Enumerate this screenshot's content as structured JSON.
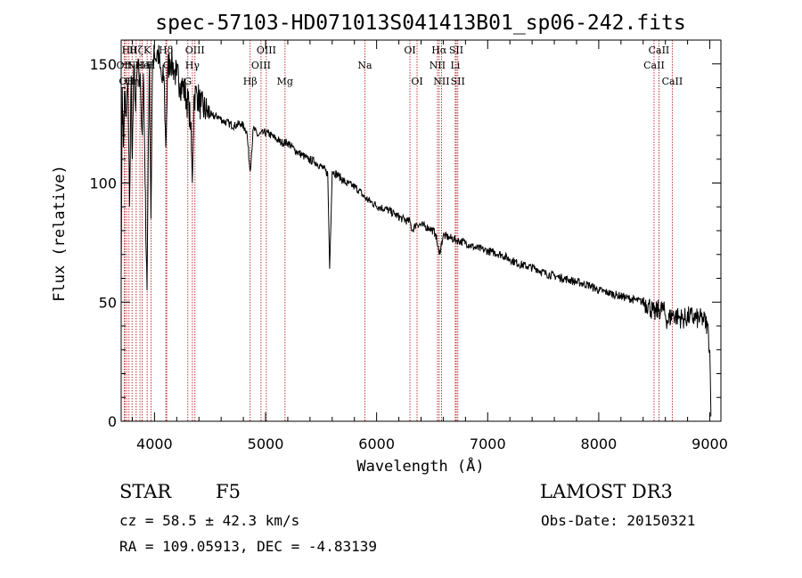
{
  "chart_data": {
    "type": "line",
    "title": "spec-57103-HD071013S041413B01_sp06-242.fits",
    "xlabel": "Wavelength (Å)",
    "ylabel": "Flux (relative)",
    "xlim": [
      3700,
      9100
    ],
    "ylim": [
      0,
      160
    ],
    "xticks": [
      4000,
      5000,
      6000,
      7000,
      8000,
      9000
    ],
    "yticks": [
      0,
      50,
      100,
      150
    ],
    "grid": false,
    "series": [
      {
        "name": "flux",
        "x": [
          3700,
          3710,
          3720,
          3730,
          3745,
          3760,
          3775,
          3790,
          3800,
          3815,
          3830,
          3845,
          3860,
          3875,
          3890,
          3900,
          3915,
          3933,
          3945,
          3955,
          3968,
          3980,
          3995,
          4010,
          4030,
          4050,
          4070,
          4085,
          4101,
          4120,
          4140,
          4160,
          4180,
          4200,
          4230,
          4260,
          4290,
          4310,
          4325,
          4340,
          4355,
          4380,
          4420,
          4470,
          4520,
          4570,
          4620,
          4670,
          4720,
          4780,
          4830,
          4861,
          4890,
          4930,
          4980,
          5020,
          5080,
          5140,
          5200,
          5260,
          5320,
          5380,
          5440,
          5500,
          5560,
          5577,
          5600,
          5660,
          5720,
          5780,
          5840,
          5890,
          5950,
          6020,
          6090,
          6160,
          6230,
          6280,
          6300,
          6320,
          6360,
          6420,
          6480,
          6530,
          6563,
          6600,
          6660,
          6720,
          6800,
          6880,
          6960,
          7040,
          7120,
          7200,
          7280,
          7360,
          7440,
          7520,
          7600,
          7680,
          7760,
          7840,
          7920,
          8000,
          8080,
          8160,
          8240,
          8320,
          8400,
          8450,
          8498,
          8542,
          8580,
          8620,
          8662,
          8700,
          8760,
          8820,
          8880,
          8940,
          8980,
          9000,
          9010
        ],
        "y": [
          60,
          140,
          115,
          138,
          128,
          142,
          90,
          145,
          110,
          150,
          130,
          148,
          145,
          140,
          120,
          146,
          100,
          55,
          118,
          150,
          85,
          142,
          158,
          152,
          155,
          148,
          142,
          145,
          115,
          148,
          152,
          150,
          147,
          145,
          142,
          140,
          135,
          132,
          125,
          100,
          136,
          138,
          132,
          130,
          128,
          128,
          126,
          125,
          124,
          125,
          122,
          105,
          123,
          120,
          121,
          121,
          119,
          117,
          117,
          114,
          112,
          110,
          109,
          107,
          104,
          64,
          105,
          103,
          100,
          99,
          97,
          94,
          92,
          90,
          89,
          87,
          85,
          84,
          84,
          80,
          83,
          82,
          81,
          79,
          70,
          78,
          77,
          76,
          75,
          73,
          72,
          71,
          70,
          68,
          66,
          65,
          64,
          62,
          61,
          60,
          59,
          58,
          57,
          55,
          54,
          53,
          52,
          51,
          50,
          49,
          45,
          47,
          47,
          42,
          45,
          44,
          43,
          44,
          43,
          43,
          40,
          30,
          2
        ]
      }
    ],
    "lines": [
      {
        "wl": 3727,
        "labels": [
          "OII"
        ],
        "rows": [
          1
        ]
      },
      {
        "wl": 3734,
        "labels": [],
        "rows": []
      },
      {
        "wl": 3750,
        "labels": [
          "OII"
        ],
        "rows": [
          2
        ]
      },
      {
        "wl": 3770,
        "labels": [
          "Hθ"
        ],
        "rows": [
          0
        ]
      },
      {
        "wl": 3798,
        "labels": [
          "Hη"
        ],
        "rows": [
          2
        ]
      },
      {
        "wl": 3835,
        "labels": [
          "Hζ"
        ],
        "rows": [
          0
        ]
      },
      {
        "wl": 3869,
        "labels": [
          "NeIII"
        ],
        "rows": [
          1
        ]
      },
      {
        "wl": 3889,
        "labels": [
          "He"
        ],
        "rows": [
          1
        ]
      },
      {
        "wl": 3934,
        "labels": [
          "K"
        ],
        "rows": [
          0
        ]
      },
      {
        "wl": 3969,
        "labels": [
          "H"
        ],
        "rows": [
          1
        ]
      },
      {
        "wl": 4102,
        "labels": [
          "Hδ"
        ],
        "rows": [
          0
        ]
      },
      {
        "wl": 4110,
        "labels": [
          "G"
        ],
        "rows": [
          1
        ]
      },
      {
        "wl": 4300,
        "labels": [
          "G"
        ],
        "rows": [
          2
        ]
      },
      {
        "wl": 4341,
        "labels": [
          "Hγ"
        ],
        "rows": [
          1
        ]
      },
      {
        "wl": 4364,
        "labels": [
          "OIII"
        ],
        "rows": [
          0
        ]
      },
      {
        "wl": 4861,
        "labels": [
          "Hβ"
        ],
        "rows": [
          2
        ]
      },
      {
        "wl": 4959,
        "labels": [
          "OIII"
        ],
        "rows": [
          1
        ]
      },
      {
        "wl": 5007,
        "labels": [
          "OIII"
        ],
        "rows": [
          0
        ]
      },
      {
        "wl": 5175,
        "labels": [
          "Mg"
        ],
        "rows": [
          2
        ]
      },
      {
        "wl": 5894,
        "labels": [
          "Na"
        ],
        "rows": [
          1
        ]
      },
      {
        "wl": 6300,
        "labels": [
          "OI"
        ],
        "rows": [
          0
        ]
      },
      {
        "wl": 6364,
        "labels": [
          "OI"
        ],
        "rows": [
          2
        ]
      },
      {
        "wl": 6548,
        "labels": [
          "NII"
        ],
        "rows": [
          1
        ]
      },
      {
        "wl": 6563,
        "labels": [
          "Hα"
        ],
        "rows": [
          0
        ]
      },
      {
        "wl": 6584,
        "labels": [
          "NII"
        ],
        "rows": [
          2
        ]
      },
      {
        "wl": 6708,
        "labels": [
          "Li"
        ],
        "rows": [
          1
        ]
      },
      {
        "wl": 6717,
        "labels": [
          "SII"
        ],
        "rows": [
          0
        ]
      },
      {
        "wl": 6731,
        "labels": [
          "SII"
        ],
        "rows": [
          2
        ]
      },
      {
        "wl": 8498,
        "labels": [
          "CaII"
        ],
        "rows": [
          1
        ]
      },
      {
        "wl": 8542,
        "labels": [
          "CaII"
        ],
        "rows": [
          0
        ]
      },
      {
        "wl": 8662,
        "labels": [
          "CaII"
        ],
        "rows": [
          2
        ]
      }
    ]
  },
  "info": {
    "class": "STAR",
    "subclass": "F5",
    "survey": "LAMOST DR3",
    "redshift": "cz = 58.5 ± 42.3 km/s",
    "obs_date": "Obs-Date: 20150321",
    "coords": "RA = 109.05913, DEC =  -4.83139"
  },
  "colors": {
    "axis": "#000000",
    "spectrum": "#000000",
    "line_marker": "#b22222"
  }
}
